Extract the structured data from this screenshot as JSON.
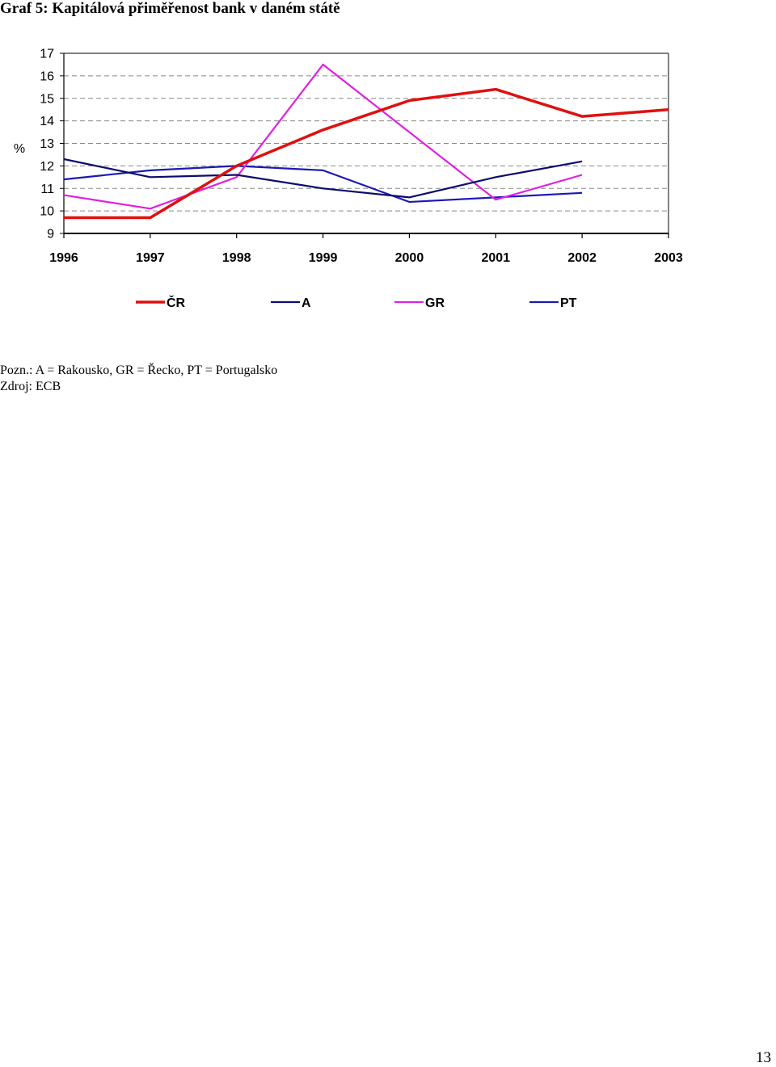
{
  "document": {
    "title": "Graf 5: Kapitálová přiměřenost bank v daném státě",
    "note": "Pozn.: A = Rakousko, GR = Řecko, PT = Portugalsko",
    "source": "Zdroj: ECB",
    "page_number": "13"
  },
  "chart_data": {
    "type": "line",
    "title": "",
    "xlabel": "",
    "ylabel": "%",
    "categories": [
      "1996",
      "1997",
      "1998",
      "1999",
      "2000",
      "2001",
      "2002",
      "2003"
    ],
    "ylim": [
      9,
      17
    ],
    "yticks": [
      9,
      10,
      11,
      12,
      13,
      14,
      15,
      16,
      17
    ],
    "grid": "horizontal dashed",
    "legend_position": "bottom",
    "series": [
      {
        "name": "ČR",
        "color": "#e01010",
        "values": [
          9.7,
          9.7,
          12.0,
          13.6,
          14.9,
          15.4,
          14.2,
          14.5
        ]
      },
      {
        "name": "A",
        "color": "#0c0c6e",
        "values": [
          12.3,
          11.5,
          11.6,
          11.0,
          10.6,
          11.5,
          12.2,
          null
        ]
      },
      {
        "name": "GR",
        "color": "#e020e0",
        "values": [
          10.7,
          10.1,
          11.5,
          16.5,
          13.5,
          10.5,
          11.6,
          null
        ]
      },
      {
        "name": "PT",
        "color": "#1a1ab4",
        "values": [
          11.4,
          11.8,
          12.0,
          11.8,
          10.4,
          10.6,
          10.8,
          null
        ]
      }
    ]
  }
}
